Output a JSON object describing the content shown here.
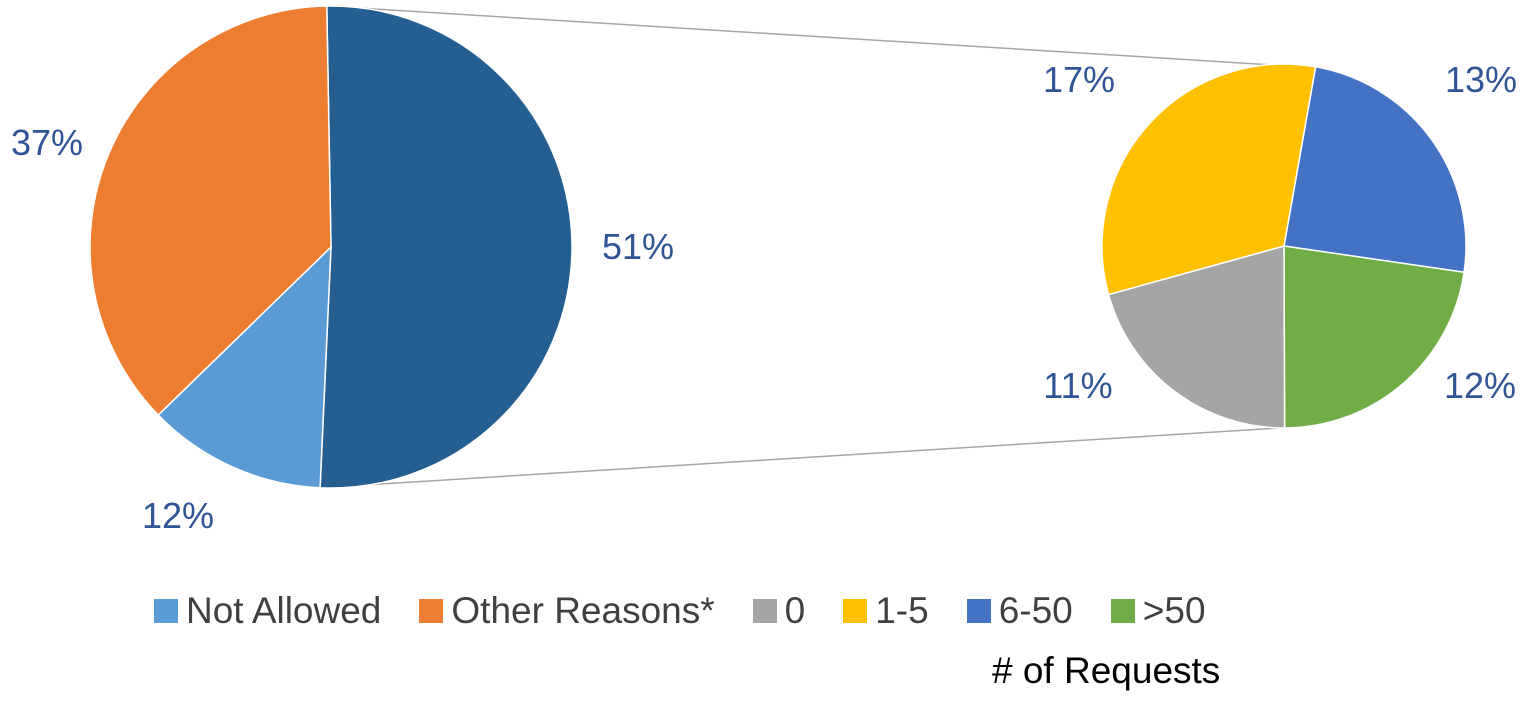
{
  "chart_data": {
    "type": "pie",
    "subtype": "pie-of-pie",
    "main_pie": {
      "slices": [
        {
          "name": "Not Allowed",
          "value": 12,
          "label": "12%",
          "color": "#5B9BD5"
        },
        {
          "name": "Other Reasons*",
          "value": 37,
          "label": "37%",
          "color": "#ED7D31"
        },
        {
          "name": "",
          "value": 51,
          "label": "51%",
          "color": "#255E91"
        }
      ]
    },
    "secondary_pie": {
      "slices": [
        {
          "name": "6-50",
          "value": 13,
          "label": "13%",
          "color": "#4472C4"
        },
        {
          "name": ">50",
          "value": 12,
          "label": "12%",
          "color": "#70AD47"
        },
        {
          "name": "0",
          "value": 11,
          "label": "11%",
          "color": "#A5A5A5"
        },
        {
          "name": "1-5",
          "value": 17,
          "label": "17%",
          "color": "#FFC000"
        }
      ]
    },
    "label_color": "#2F5597",
    "legend": {
      "placement": "bottom",
      "entries": [
        {
          "name": "Not Allowed",
          "color": "#5B9BD5"
        },
        {
          "name": "Other Reasons*",
          "color": "#ED7D31"
        },
        {
          "name": "0",
          "color": "#A5A5A5"
        },
        {
          "name": "1-5",
          "color": "#FFC000"
        },
        {
          "name": "6-50",
          "color": "#4472C4"
        },
        {
          "name": ">50",
          "color": "#70AD47"
        }
      ]
    },
    "xlabel": "# of Requests"
  }
}
